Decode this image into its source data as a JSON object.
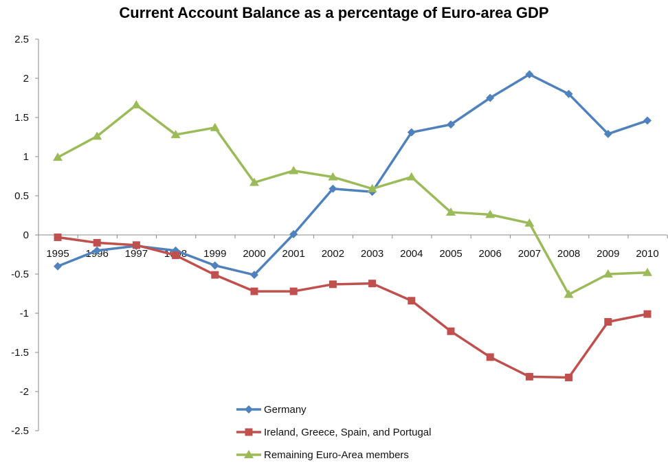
{
  "chart_data": {
    "type": "line",
    "title": "Current Account Balance as a percentage of Euro-area GDP",
    "xlabel": "",
    "ylabel": "",
    "ylim": [
      -2.5,
      2.5
    ],
    "yticks": [
      "2.5",
      "2",
      "1.5",
      "1",
      "0.5",
      "0",
      "-0.5",
      "-1",
      "-1.5",
      "-2",
      "-2.5"
    ],
    "ytick_values": [
      2.5,
      2,
      1.5,
      1,
      0.5,
      0,
      -0.5,
      -1,
      -1.5,
      -2,
      -2.5
    ],
    "categories": [
      "1995",
      "1996",
      "1997",
      "1998",
      "1999",
      "2000",
      "2001",
      "2002",
      "2003",
      "2004",
      "2005",
      "2006",
      "2007",
      "2008",
      "2009",
      "2010"
    ],
    "grid": false,
    "legend_position": "bottom-center",
    "series": [
      {
        "name": "Germany",
        "color": "#4f81bd",
        "marker": "diamond",
        "values": [
          -0.4,
          -0.2,
          -0.14,
          -0.2,
          -0.39,
          -0.51,
          0.01,
          0.59,
          0.55,
          1.31,
          1.41,
          1.75,
          2.05,
          1.8,
          1.29,
          1.46
        ]
      },
      {
        "name": "Ireland, Greece, Spain, and Portugal",
        "color": "#c0504d",
        "marker": "square",
        "values": [
          -0.03,
          -0.1,
          -0.13,
          -0.26,
          -0.51,
          -0.72,
          -0.72,
          -0.63,
          -0.62,
          -0.84,
          -1.23,
          -1.56,
          -1.81,
          -1.82,
          -1.11,
          -1.01
        ]
      },
      {
        "name": "Remaining Euro-Area members",
        "color": "#9bbb59",
        "marker": "triangle",
        "values": [
          0.99,
          1.26,
          1.66,
          1.28,
          1.37,
          0.67,
          0.82,
          0.74,
          0.59,
          0.74,
          0.29,
          0.26,
          0.15,
          -0.76,
          -0.5,
          -0.48
        ]
      }
    ]
  }
}
